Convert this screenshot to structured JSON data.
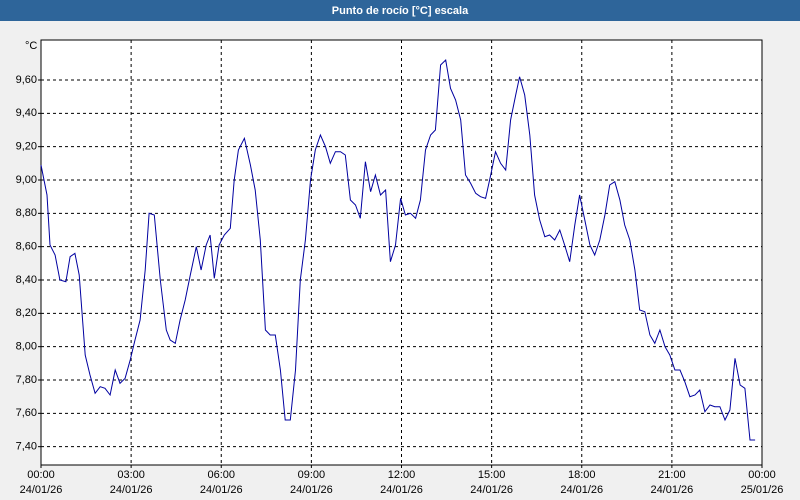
{
  "chart_data": {
    "type": "line",
    "title": "Punto de rocío [°C] escala",
    "ylabel": "°C",
    "x": [
      0,
      0.2,
      0.3,
      0.47,
      0.63,
      0.83,
      0.97,
      1.13,
      1.27,
      1.47,
      1.63,
      1.8,
      1.97,
      2.13,
      2.3,
      2.47,
      2.63,
      2.8,
      2.97,
      3.13,
      3.3,
      3.47,
      3.6,
      3.77,
      3.97,
      4.17,
      4.3,
      4.47,
      4.63,
      4.8,
      4.97,
      5.17,
      5.33,
      5.5,
      5.63,
      5.77,
      5.93,
      6.1,
      6.3,
      6.43,
      6.57,
      6.77,
      6.97,
      7.13,
      7.3,
      7.47,
      7.63,
      7.8,
      7.97,
      8.13,
      8.3,
      8.47,
      8.63,
      8.8,
      8.97,
      9.13,
      9.3,
      9.47,
      9.63,
      9.8,
      9.97,
      10.13,
      10.3,
      10.47,
      10.63,
      10.8,
      10.97,
      11.13,
      11.3,
      11.47,
      11.63,
      11.8,
      11.97,
      12.13,
      12.3,
      12.47,
      12.63,
      12.8,
      12.97,
      13.13,
      13.3,
      13.47,
      13.63,
      13.8,
      13.97,
      14.13,
      14.3,
      14.47,
      14.63,
      14.8,
      14.97,
      15.13,
      15.3,
      15.47,
      15.63,
      15.8,
      15.93,
      16.1,
      16.27,
      16.43,
      16.6,
      16.77,
      16.93,
      17.1,
      17.27,
      17.43,
      17.6,
      17.77,
      17.93,
      18.1,
      18.27,
      18.43,
      18.6,
      18.77,
      18.93,
      19.1,
      19.27,
      19.43,
      19.6,
      19.77,
      19.93,
      20.1,
      20.27,
      20.43,
      20.6,
      20.77,
      20.93,
      21.1,
      21.27,
      21.43,
      21.6,
      21.77,
      21.93,
      22.1,
      22.27,
      22.43,
      22.6,
      22.77,
      22.93,
      23.1,
      23.27,
      23.43,
      23.6,
      23.77
    ],
    "series": [
      {
        "color": "#0000a0",
        "values": [
          9.09,
          8.91,
          8.61,
          8.55,
          8.4,
          8.39,
          8.54,
          8.56,
          8.43,
          7.95,
          7.83,
          7.72,
          7.76,
          7.75,
          7.71,
          7.86,
          7.78,
          7.81,
          7.92,
          8.04,
          8.16,
          8.46,
          8.8,
          8.79,
          8.4,
          8.1,
          8.04,
          8.02,
          8.16,
          8.28,
          8.43,
          8.6,
          8.46,
          8.61,
          8.67,
          8.41,
          8.61,
          8.67,
          8.71,
          9.0,
          9.18,
          9.25,
          9.09,
          8.94,
          8.64,
          8.1,
          8.07,
          8.07,
          7.86,
          7.56,
          7.56,
          7.86,
          8.4,
          8.64,
          9.0,
          9.18,
          9.27,
          9.2,
          9.1,
          9.17,
          9.17,
          9.15,
          8.88,
          8.85,
          8.77,
          9.11,
          8.93,
          9.03,
          8.91,
          8.94,
          8.51,
          8.61,
          8.89,
          8.79,
          8.8,
          8.77,
          8.88,
          9.18,
          9.27,
          9.3,
          9.69,
          9.72,
          9.55,
          9.48,
          9.36,
          9.03,
          8.98,
          8.92,
          8.9,
          8.89,
          9.03,
          9.17,
          9.1,
          9.06,
          9.36,
          9.51,
          9.62,
          9.51,
          9.27,
          8.91,
          8.76,
          8.66,
          8.67,
          8.64,
          8.7,
          8.61,
          8.51,
          8.73,
          8.91,
          8.76,
          8.61,
          8.55,
          8.64,
          8.79,
          8.97,
          8.99,
          8.88,
          8.73,
          8.64,
          8.46,
          8.22,
          8.21,
          8.07,
          8.02,
          8.1,
          8.0,
          7.95,
          7.86,
          7.86,
          7.79,
          7.7,
          7.71,
          7.74,
          7.61,
          7.65,
          7.64,
          7.64,
          7.56,
          7.62,
          7.93,
          7.77,
          7.75,
          7.44,
          7.44
        ]
      }
    ],
    "xlim": [
      0,
      24
    ],
    "ylim": [
      7.29,
      9.84
    ],
    "xticks": [
      {
        "value": 0,
        "label": "00:00"
      },
      {
        "value": 3,
        "label": "03:00"
      },
      {
        "value": 6,
        "label": "06:00"
      },
      {
        "value": 9,
        "label": "09:00"
      },
      {
        "value": 12,
        "label": "12:00"
      },
      {
        "value": 15,
        "label": "15:00"
      },
      {
        "value": 18,
        "label": "18:00"
      },
      {
        "value": 21,
        "label": "21:00"
      },
      {
        "value": 24,
        "label": "00:00"
      }
    ],
    "xtick_dates": [
      "24/01/26",
      "24/01/26",
      "24/01/26",
      "24/01/26",
      "24/01/26",
      "24/01/26",
      "24/01/26",
      "24/01/26",
      "25/01/26"
    ],
    "yticks": [
      {
        "value": 7.4,
        "label": "7,40"
      },
      {
        "value": 7.6,
        "label": "7,60"
      },
      {
        "value": 7.8,
        "label": "7,80"
      },
      {
        "value": 8.0,
        "label": "8,00"
      },
      {
        "value": 8.2,
        "label": "8,20"
      },
      {
        "value": 8.4,
        "label": "8,40"
      },
      {
        "value": 8.6,
        "label": "8,60"
      },
      {
        "value": 8.8,
        "label": "8,80"
      },
      {
        "value": 9.0,
        "label": "9,00"
      },
      {
        "value": 9.2,
        "label": "9,20"
      },
      {
        "value": 9.4,
        "label": "9,40"
      },
      {
        "value": 9.6,
        "label": "9,60"
      }
    ],
    "grid": true
  }
}
